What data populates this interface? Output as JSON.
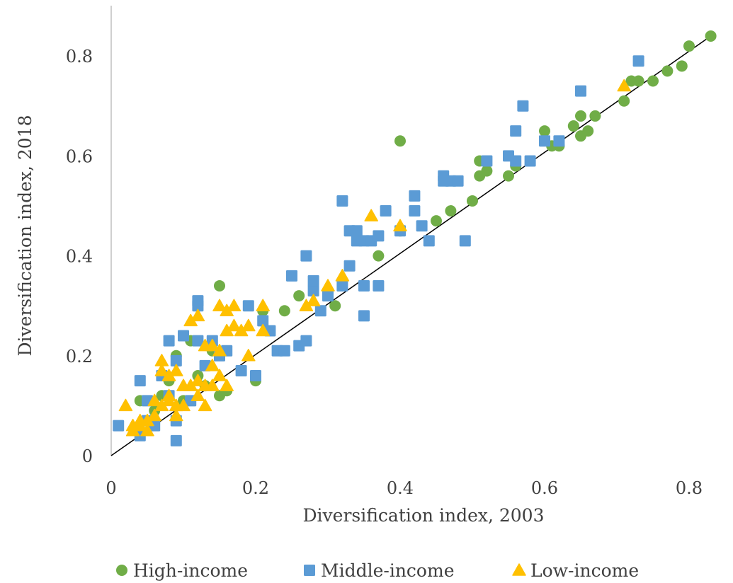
{
  "chart_data": {
    "type": "scatter",
    "xlabel": "Diversification index, 2003",
    "ylabel": "Diversification index, 2018",
    "xlim": [
      0,
      0.9
    ],
    "ylim": [
      0,
      0.9
    ],
    "x_ticks": [
      "0",
      "0.2",
      "0.4",
      "0.6",
      "0.8"
    ],
    "y_ticks": [
      "0",
      "0.2",
      "0.4",
      "0.6",
      "0.8"
    ],
    "x_tick_values": [
      0,
      0.2,
      0.4,
      0.6,
      0.8
    ],
    "y_tick_values": [
      0,
      0.2,
      0.4,
      0.6,
      0.8
    ],
    "grid": false,
    "legend_position": "bottom",
    "reference_line": {
      "from": [
        0,
        0
      ],
      "to": [
        0.83,
        0.84
      ],
      "color": "#000000"
    },
    "series": [
      {
        "name": "High-income",
        "marker": "circle",
        "color": "#70AD47",
        "points": [
          [
            0.04,
            0.11
          ],
          [
            0.06,
            0.09
          ],
          [
            0.07,
            0.12
          ],
          [
            0.08,
            0.15
          ],
          [
            0.09,
            0.2
          ],
          [
            0.1,
            0.11
          ],
          [
            0.11,
            0.23
          ],
          [
            0.12,
            0.16
          ],
          [
            0.13,
            0.14
          ],
          [
            0.14,
            0.21
          ],
          [
            0.15,
            0.34
          ],
          [
            0.15,
            0.12
          ],
          [
            0.16,
            0.13
          ],
          [
            0.2,
            0.15
          ],
          [
            0.21,
            0.29
          ],
          [
            0.24,
            0.29
          ],
          [
            0.26,
            0.32
          ],
          [
            0.31,
            0.3
          ],
          [
            0.37,
            0.4
          ],
          [
            0.4,
            0.45
          ],
          [
            0.4,
            0.63
          ],
          [
            0.45,
            0.47
          ],
          [
            0.47,
            0.49
          ],
          [
            0.5,
            0.51
          ],
          [
            0.51,
            0.56
          ],
          [
            0.51,
            0.59
          ],
          [
            0.52,
            0.57
          ],
          [
            0.55,
            0.56
          ],
          [
            0.56,
            0.58
          ],
          [
            0.6,
            0.65
          ],
          [
            0.61,
            0.62
          ],
          [
            0.62,
            0.62
          ],
          [
            0.64,
            0.66
          ],
          [
            0.65,
            0.68
          ],
          [
            0.65,
            0.64
          ],
          [
            0.66,
            0.65
          ],
          [
            0.67,
            0.68
          ],
          [
            0.71,
            0.71
          ],
          [
            0.72,
            0.75
          ],
          [
            0.73,
            0.75
          ],
          [
            0.75,
            0.75
          ],
          [
            0.77,
            0.77
          ],
          [
            0.79,
            0.78
          ],
          [
            0.8,
            0.82
          ],
          [
            0.83,
            0.84
          ]
        ]
      },
      {
        "name": "Middle-income",
        "marker": "square",
        "color": "#5B9BD5",
        "points": [
          [
            0.01,
            0.06
          ],
          [
            0.04,
            0.04
          ],
          [
            0.04,
            0.15
          ],
          [
            0.05,
            0.11
          ],
          [
            0.05,
            0.07
          ],
          [
            0.06,
            0.06
          ],
          [
            0.07,
            0.16
          ],
          [
            0.08,
            0.23
          ],
          [
            0.08,
            0.12
          ],
          [
            0.09,
            0.19
          ],
          [
            0.09,
            0.03
          ],
          [
            0.09,
            0.07
          ],
          [
            0.1,
            0.24
          ],
          [
            0.11,
            0.11
          ],
          [
            0.12,
            0.3
          ],
          [
            0.12,
            0.31
          ],
          [
            0.12,
            0.23
          ],
          [
            0.13,
            0.18
          ],
          [
            0.14,
            0.23
          ],
          [
            0.15,
            0.2
          ],
          [
            0.16,
            0.21
          ],
          [
            0.18,
            0.17
          ],
          [
            0.19,
            0.3
          ],
          [
            0.2,
            0.16
          ],
          [
            0.21,
            0.27
          ],
          [
            0.22,
            0.25
          ],
          [
            0.23,
            0.21
          ],
          [
            0.24,
            0.21
          ],
          [
            0.25,
            0.36
          ],
          [
            0.26,
            0.22
          ],
          [
            0.27,
            0.23
          ],
          [
            0.27,
            0.4
          ],
          [
            0.28,
            0.33
          ],
          [
            0.28,
            0.35
          ],
          [
            0.29,
            0.29
          ],
          [
            0.3,
            0.32
          ],
          [
            0.32,
            0.34
          ],
          [
            0.32,
            0.51
          ],
          [
            0.33,
            0.38
          ],
          [
            0.33,
            0.45
          ],
          [
            0.34,
            0.45
          ],
          [
            0.34,
            0.43
          ],
          [
            0.35,
            0.34
          ],
          [
            0.35,
            0.43
          ],
          [
            0.35,
            0.28
          ],
          [
            0.36,
            0.43
          ],
          [
            0.37,
            0.44
          ],
          [
            0.37,
            0.34
          ],
          [
            0.38,
            0.49
          ],
          [
            0.4,
            0.45
          ],
          [
            0.42,
            0.52
          ],
          [
            0.42,
            0.49
          ],
          [
            0.43,
            0.46
          ],
          [
            0.44,
            0.43
          ],
          [
            0.46,
            0.56
          ],
          [
            0.46,
            0.55
          ],
          [
            0.47,
            0.55
          ],
          [
            0.48,
            0.55
          ],
          [
            0.49,
            0.43
          ],
          [
            0.52,
            0.59
          ],
          [
            0.55,
            0.6
          ],
          [
            0.56,
            0.65
          ],
          [
            0.56,
            0.59
          ],
          [
            0.57,
            0.7
          ],
          [
            0.58,
            0.59
          ],
          [
            0.6,
            0.63
          ],
          [
            0.62,
            0.63
          ],
          [
            0.65,
            0.73
          ],
          [
            0.73,
            0.79
          ]
        ]
      },
      {
        "name": "Low-income",
        "marker": "triangle",
        "color": "#FFC000",
        "points": [
          [
            0.02,
            0.1
          ],
          [
            0.03,
            0.05
          ],
          [
            0.03,
            0.06
          ],
          [
            0.04,
            0.06
          ],
          [
            0.04,
            0.07
          ],
          [
            0.05,
            0.05
          ],
          [
            0.05,
            0.07
          ],
          [
            0.06,
            0.08
          ],
          [
            0.06,
            0.11
          ],
          [
            0.07,
            0.1
          ],
          [
            0.07,
            0.19
          ],
          [
            0.07,
            0.17
          ],
          [
            0.08,
            0.11
          ],
          [
            0.08,
            0.12
          ],
          [
            0.08,
            0.16
          ],
          [
            0.09,
            0.1
          ],
          [
            0.09,
            0.17
          ],
          [
            0.09,
            0.08
          ],
          [
            0.1,
            0.1
          ],
          [
            0.1,
            0.14
          ],
          [
            0.11,
            0.14
          ],
          [
            0.11,
            0.27
          ],
          [
            0.12,
            0.28
          ],
          [
            0.12,
            0.12
          ],
          [
            0.12,
            0.15
          ],
          [
            0.13,
            0.1
          ],
          [
            0.13,
            0.14
          ],
          [
            0.13,
            0.22
          ],
          [
            0.14,
            0.22
          ],
          [
            0.14,
            0.18
          ],
          [
            0.14,
            0.14
          ],
          [
            0.15,
            0.21
          ],
          [
            0.15,
            0.16
          ],
          [
            0.15,
            0.3
          ],
          [
            0.16,
            0.25
          ],
          [
            0.16,
            0.14
          ],
          [
            0.16,
            0.29
          ],
          [
            0.17,
            0.26
          ],
          [
            0.17,
            0.3
          ],
          [
            0.18,
            0.25
          ],
          [
            0.19,
            0.26
          ],
          [
            0.19,
            0.2
          ],
          [
            0.21,
            0.25
          ],
          [
            0.21,
            0.3
          ],
          [
            0.27,
            0.3
          ],
          [
            0.28,
            0.31
          ],
          [
            0.3,
            0.34
          ],
          [
            0.32,
            0.36
          ],
          [
            0.36,
            0.48
          ],
          [
            0.4,
            0.46
          ],
          [
            0.71,
            0.74
          ]
        ]
      }
    ]
  }
}
